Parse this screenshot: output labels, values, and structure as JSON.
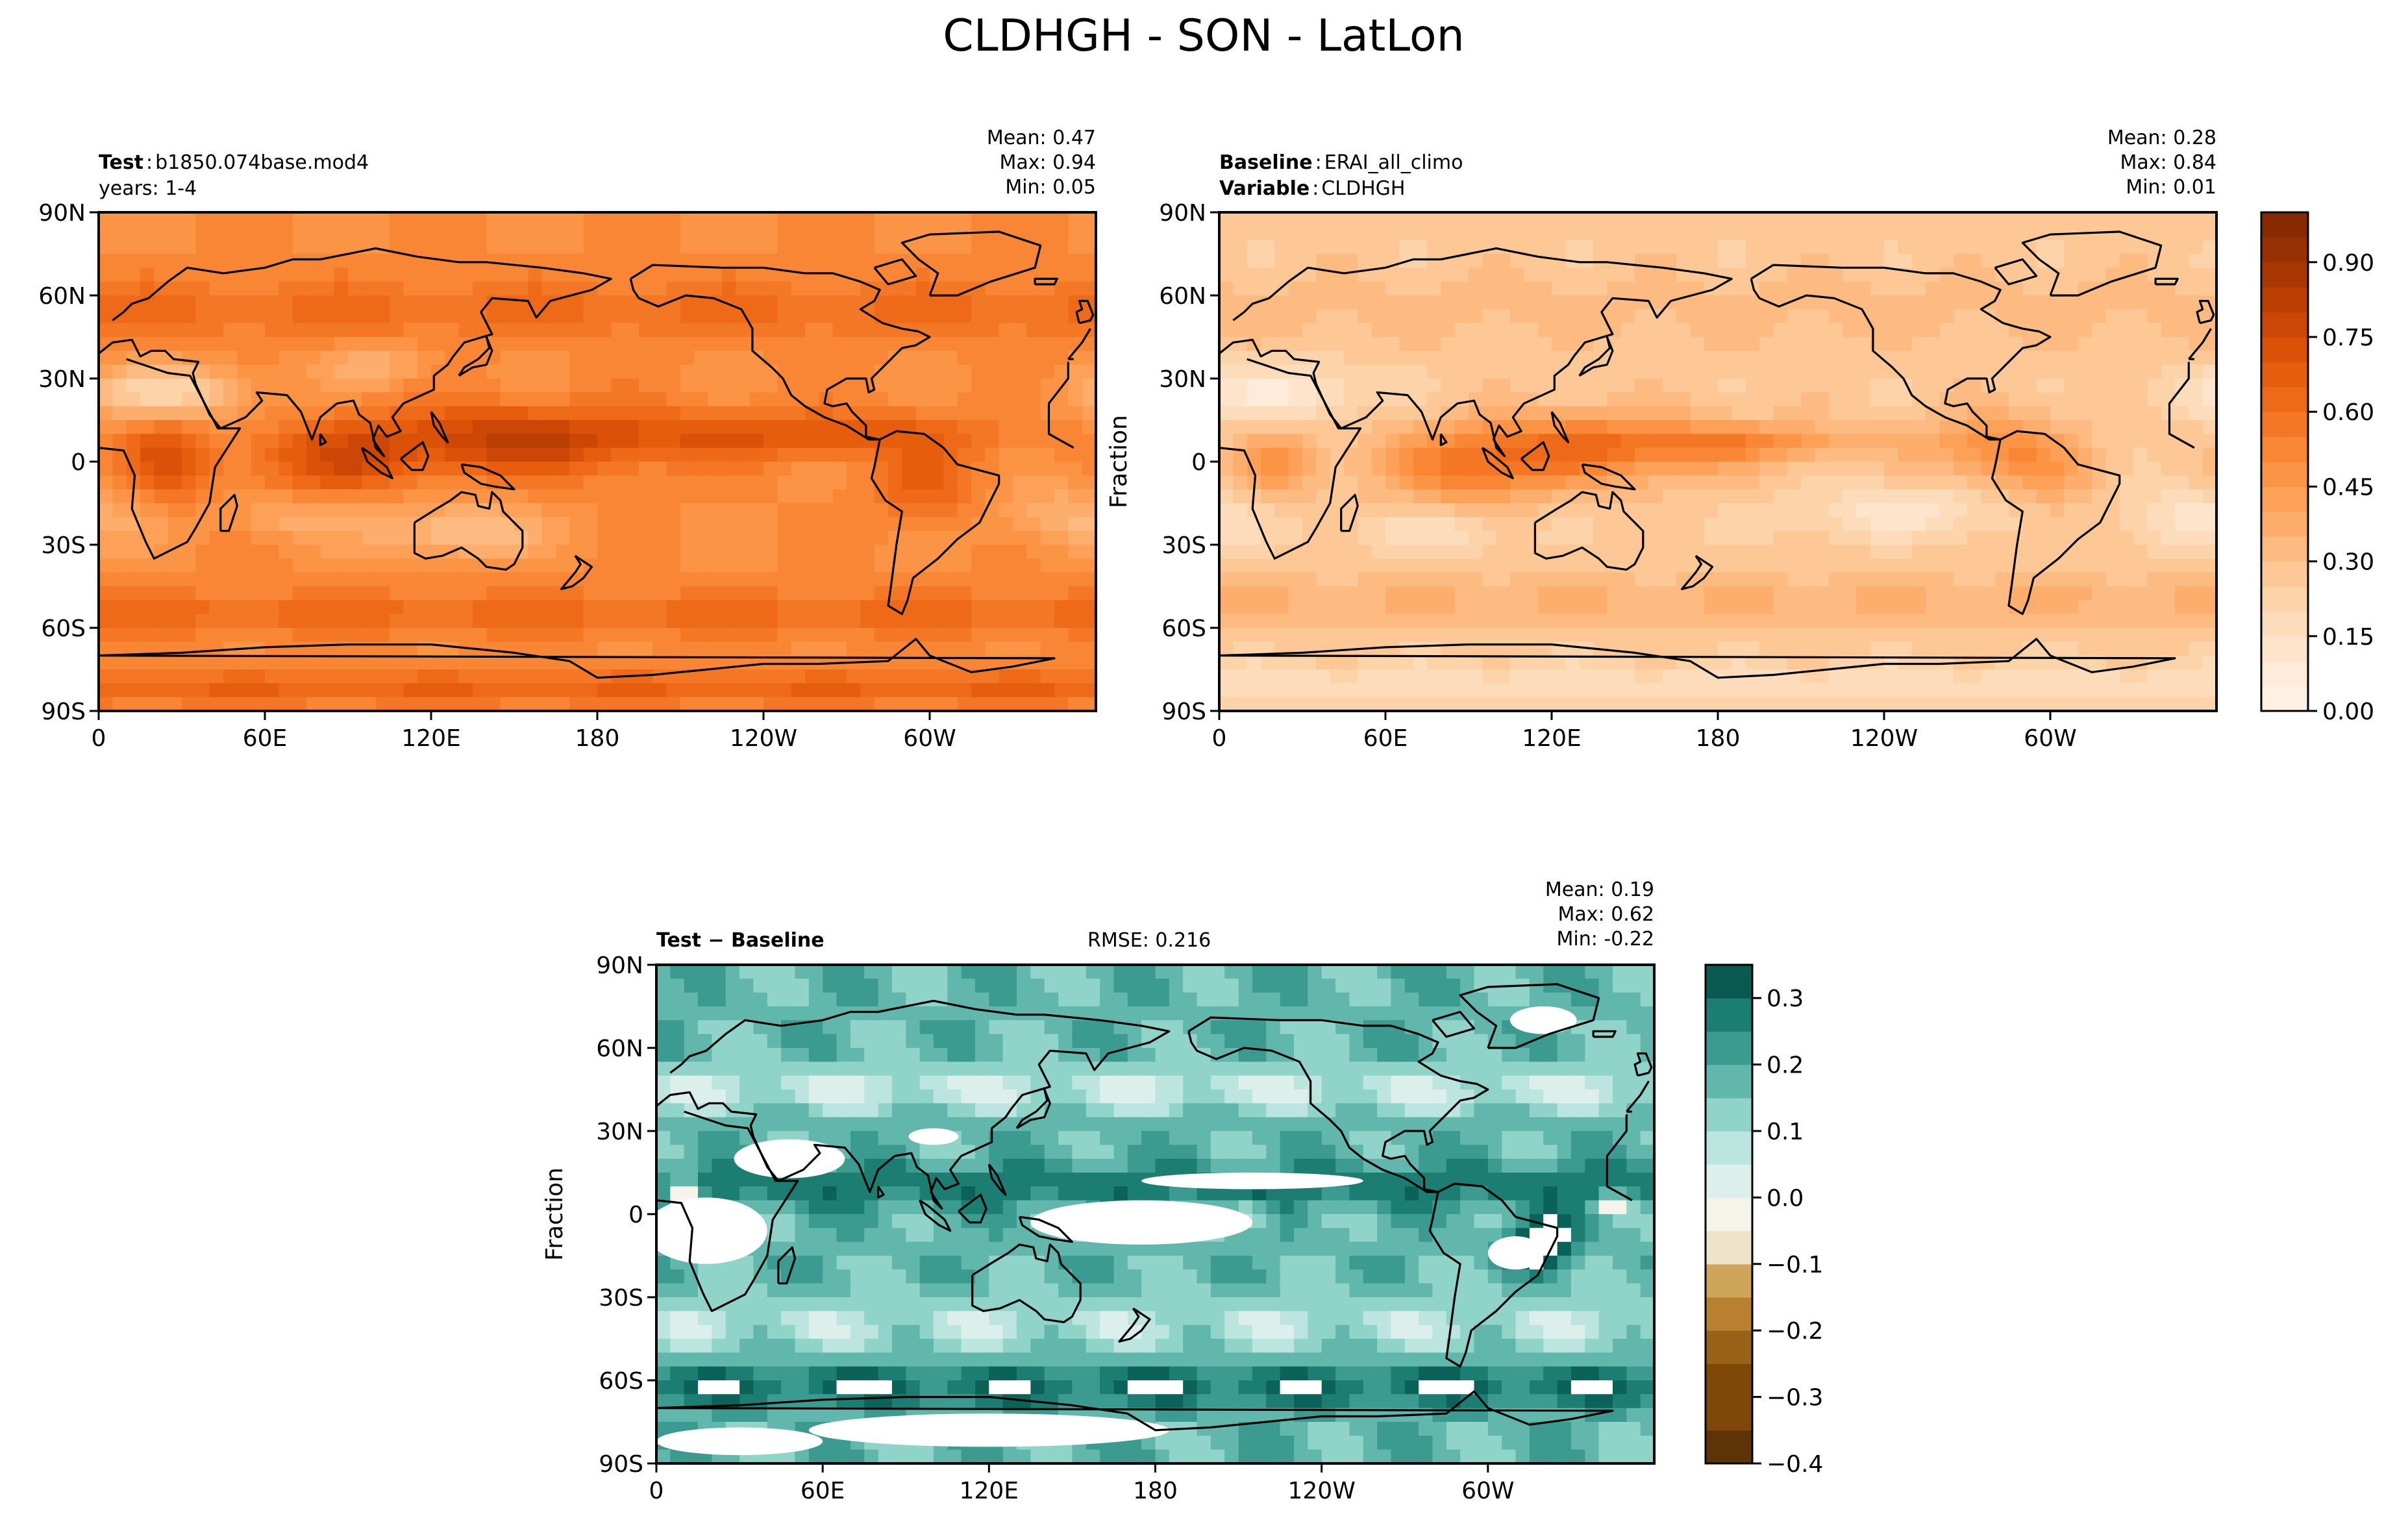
{
  "figure": {
    "title": "CLDHGH - SON - LatLon"
  },
  "lon_ticks": [
    "0",
    "60E",
    "120E",
    "180",
    "120W",
    "60W"
  ],
  "lat_ticks": [
    "90N",
    "60N",
    "30N",
    "0",
    "30S",
    "60S",
    "90S"
  ],
  "chart_data": [
    {
      "type": "heatmap",
      "name": "test",
      "header": {
        "label_bold": "Test",
        "sep": ":",
        "label_value": "b1850.074base.mod4",
        "line2": "years: 1-4"
      },
      "stats": {
        "mean_text": "Mean:  0.47",
        "max_text": "Max:  0.94",
        "min_text": "Min:  0.05",
        "mean": 0.47,
        "max": 0.94,
        "min": 0.05
      },
      "ylabel": "",
      "xlim": [
        0,
        360
      ],
      "ylim": [
        -90,
        90
      ],
      "colormap": "Oranges",
      "field_features": [
        "ITCZ maximum near 0-15N across Indian Ocean/West Pacific",
        "minimum over Sahara, Arabia and subtropical oceans",
        "high values over Southern Ocean storm track"
      ]
    },
    {
      "type": "heatmap",
      "name": "baseline",
      "header": {
        "label_bold": "Baseline",
        "sep": ":",
        "label_value": "ERAI_all_climo",
        "line2_bold": "Variable",
        "line2_sep": ":",
        "line2_value": "CLDHGH"
      },
      "stats": {
        "mean_text": "Mean:  0.28",
        "max_text": "Max:  0.84",
        "min_text": "Min:  0.01",
        "mean": 0.28,
        "max": 0.84,
        "min": 0.01
      },
      "ylabel": "Fraction",
      "xlim": [
        0,
        360
      ],
      "ylim": [
        -90,
        90
      ],
      "colormap": "Oranges",
      "colorbar": {
        "range": [
          0.0,
          1.0
        ],
        "tick_labels": [
          "0.00",
          "0.15",
          "0.30",
          "0.45",
          "0.60",
          "0.75",
          "0.90"
        ],
        "tick_values": [
          0.0,
          0.15,
          0.3,
          0.45,
          0.6,
          0.75,
          0.9
        ],
        "levels": 20
      }
    },
    {
      "type": "heatmap",
      "name": "difference",
      "header": {
        "label_bold": "Test − Baseline"
      },
      "rmse_text": "RMSE: 0.216",
      "rmse": 0.216,
      "stats": {
        "mean_text": "Mean:  0.19",
        "max_text": "Max:  0.62",
        "min_text": "Min: -0.22",
        "mean": 0.19,
        "max": 0.62,
        "min": -0.22
      },
      "ylabel": "Fraction",
      "xlim": [
        0,
        360
      ],
      "ylim": [
        -90,
        90
      ],
      "colormap": "BrBG",
      "colorbar": {
        "range": [
          -0.4,
          0.35
        ],
        "tick_labels": [
          "−0.4",
          "−0.3",
          "−0.2",
          "−0.1",
          "0.0",
          "0.1",
          "0.2",
          "0.3"
        ],
        "tick_values": [
          -0.4,
          -0.3,
          -0.2,
          -0.1,
          0.0,
          0.1,
          0.2,
          0.3
        ],
        "levels": 15
      }
    }
  ],
  "colors": {
    "oranges": [
      "#fff5eb",
      "#fee8d3",
      "#fdd8b3",
      "#fdc28c",
      "#fda762",
      "#fb8d3d",
      "#f2701d",
      "#e25609",
      "#c44103",
      "#9f3303",
      "#7f2704"
    ],
    "brbg_neg": [
      "#ede3c9",
      "#e3cd95",
      "#cfa55c",
      "#b88030",
      "#9a6119",
      "#7e4808",
      "#5e3407"
    ],
    "brbg_zero": "#f5f3ea",
    "brbg_pos": [
      "#dcefea",
      "#bde5df",
      "#90d3c8",
      "#62b7ac",
      "#3b9b90",
      "#1c7d73",
      "#0b6259",
      "#033e36"
    ]
  }
}
